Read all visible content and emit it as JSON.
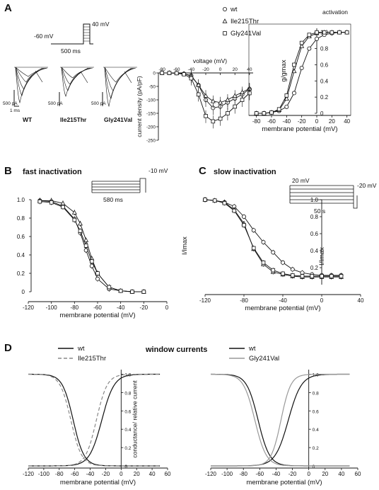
{
  "panels": {
    "A": {
      "letter": "A",
      "protocol": {
        "v_hold": "-60 mV",
        "v_step": "40 mV",
        "duration": "500 ms"
      },
      "traces": {
        "labels": [
          "WT",
          "Ile215Thr",
          "Gly241Val"
        ],
        "y_scale": "500 pA",
        "t_scale": "1 ms"
      }
    },
    "B": {
      "letter": "B",
      "title": "fast inactivation",
      "protocol": {
        "v_test": "-10 mV",
        "duration": "580 ms"
      }
    },
    "C": {
      "letter": "C",
      "title": "slow inactivation",
      "protocol": {
        "v_pre": "20 mV",
        "v_test": "-20 mV",
        "duration": "50 s"
      }
    },
    "D": {
      "letter": "D",
      "title": "window currents"
    }
  },
  "chart_data": [
    {
      "id": "iv",
      "type": "line",
      "xlabel": "voltage (mV)",
      "ylabel": "current density (pA/pF)",
      "xlim": [
        -85,
        45
      ],
      "ylim": [
        -250,
        0
      ],
      "xticks": [
        -80,
        -60,
        -40,
        -20,
        0,
        20,
        40
      ],
      "yticks": [
        0,
        -50,
        -100,
        -150,
        -200,
        -250
      ],
      "x": [
        -80,
        -70,
        -60,
        -50,
        -40,
        -30,
        -20,
        -10,
        0,
        10,
        20,
        30,
        40
      ],
      "series": [
        {
          "name": "wt",
          "marker": "circle",
          "values": [
            0,
            0,
            -1,
            -3,
            -10,
            -45,
            -100,
            -130,
            -125,
            -110,
            -95,
            -80,
            -60
          ]
        },
        {
          "name": "Ile215Thr",
          "marker": "triangle",
          "values": [
            0,
            0,
            -1,
            -3,
            -12,
            -45,
            -85,
            -105,
            -110,
            -100,
            -85,
            -72,
            -58
          ]
        },
        {
          "name": "Gly241Val",
          "marker": "square",
          "values": [
            0,
            0,
            -1,
            -5,
            -20,
            -80,
            -160,
            -180,
            -170,
            -150,
            -125,
            -100,
            -75
          ]
        }
      ]
    },
    {
      "id": "activation",
      "type": "line",
      "title": "activation",
      "xlabel": "membrane potential (mV)",
      "ylabel": "g/gmax",
      "xlim": [
        -90,
        45
      ],
      "ylim": [
        0,
        1.05
      ],
      "xticks": [
        -80,
        -60,
        -40,
        -20,
        0,
        20,
        40
      ],
      "yticks": [
        0,
        0.2,
        0.4,
        0.6,
        0.8,
        1.0
      ],
      "legend": "top-left",
      "x": [
        -80,
        -70,
        -60,
        -50,
        -40,
        -30,
        -20,
        -10,
        0,
        10,
        20,
        30,
        40
      ],
      "series": [
        {
          "name": "wt",
          "marker": "circle",
          "values": [
            0.0,
            0.0,
            0.01,
            0.03,
            0.08,
            0.25,
            0.56,
            0.8,
            0.92,
            0.97,
            0.99,
            1.0,
            1.0
          ]
        },
        {
          "name": "Ile215Thr",
          "marker": "triangle",
          "values": [
            0.0,
            0.0,
            0.01,
            0.04,
            0.18,
            0.52,
            0.83,
            0.95,
            0.99,
            1.0,
            1.0,
            1.0,
            1.0
          ]
        },
        {
          "name": "Gly241Val",
          "marker": "square",
          "values": [
            0.0,
            0.0,
            0.01,
            0.05,
            0.22,
            0.6,
            0.87,
            0.97,
            1.0,
            1.0,
            1.0,
            1.0,
            1.0
          ]
        }
      ]
    },
    {
      "id": "fast",
      "type": "line",
      "title": "fast inactivation",
      "xlabel": "membrane potential (mV)",
      "ylabel": "I/Imax",
      "xlim": [
        -120,
        0
      ],
      "ylim": [
        0,
        1.0
      ],
      "xticks": [
        -120,
        -100,
        -80,
        -60,
        -40,
        -20,
        0
      ],
      "yticks": [
        0,
        0.2,
        0.4,
        0.6,
        0.8,
        1.0
      ],
      "x": [
        -110,
        -100,
        -90,
        -80,
        -75,
        -70,
        -65,
        -60,
        -50,
        -40,
        -30,
        -20
      ],
      "series": [
        {
          "name": "wt",
          "marker": "circle",
          "values": [
            0.99,
            0.98,
            0.93,
            0.79,
            0.64,
            0.45,
            0.28,
            0.14,
            0.03,
            0.01,
            0.0,
            0.0
          ]
        },
        {
          "name": "Ile215Thr",
          "marker": "triangle",
          "values": [
            0.99,
            0.99,
            0.96,
            0.86,
            0.74,
            0.56,
            0.36,
            0.2,
            0.05,
            0.01,
            0.0,
            0.0
          ]
        },
        {
          "name": "Gly241Val",
          "marker": "square",
          "values": [
            0.98,
            0.97,
            0.92,
            0.78,
            0.66,
            0.5,
            0.33,
            0.2,
            0.05,
            0.01,
            0.0,
            0.0
          ]
        }
      ]
    },
    {
      "id": "slow",
      "type": "line",
      "title": "slow inactivation",
      "xlabel": "membrane potential (mV)",
      "ylabel": "I/Imax",
      "xlim": [
        -120,
        40
      ],
      "ylim": [
        0,
        1.0
      ],
      "xticks": [
        -120,
        -80,
        -40,
        0,
        40
      ],
      "yticks": [
        0.2,
        0.4,
        0.6,
        0.8,
        1.0
      ],
      "x": [
        -120,
        -110,
        -100,
        -90,
        -80,
        -70,
        -60,
        -50,
        -40,
        -30,
        -20,
        -10,
        0,
        10,
        20
      ],
      "series": [
        {
          "name": "wt",
          "marker": "circle",
          "values": [
            1.0,
            0.99,
            0.97,
            0.92,
            0.8,
            0.64,
            0.5,
            0.38,
            0.26,
            0.18,
            0.14,
            0.12,
            0.11,
            0.11,
            0.11
          ]
        },
        {
          "name": "Ile215Thr",
          "marker": "triangle",
          "values": [
            1.0,
            0.99,
            0.97,
            0.88,
            0.72,
            0.42,
            0.24,
            0.15,
            0.12,
            0.1,
            0.09,
            0.09,
            0.09,
            0.09,
            0.09
          ]
        },
        {
          "name": "Gly241Val",
          "marker": "square",
          "values": [
            1.0,
            0.99,
            0.96,
            0.87,
            0.7,
            0.43,
            0.26,
            0.17,
            0.13,
            0.11,
            0.1,
            0.1,
            0.1,
            0.1,
            0.1
          ]
        }
      ]
    },
    {
      "id": "window1",
      "type": "line",
      "xlabel": "membrane potential (mV)",
      "ylabel": "conductance/ relative current",
      "xlim": [
        -120,
        60
      ],
      "ylim": [
        0,
        1.05
      ],
      "xticks": [
        -120,
        -100,
        -80,
        -60,
        -40,
        -20,
        0,
        20,
        40,
        60
      ],
      "yticks": [
        0,
        0.2,
        0.4,
        0.6,
        0.8,
        1.0
      ],
      "legend": "top-left",
      "curve_params": [
        {
          "name": "wt",
          "style": "solid",
          "color": "#111111",
          "inact_v": -62,
          "inact_k": 7,
          "act_v": -25,
          "act_k": 8
        },
        {
          "name": "Ile215Thr",
          "style": "dashed",
          "color": "#888888",
          "inact_v": -65,
          "inact_k": 7,
          "act_v": -32,
          "act_k": 7
        }
      ]
    },
    {
      "id": "window2",
      "type": "line",
      "xlabel": "membrane potential (mV)",
      "xlim": [
        -120,
        60
      ],
      "ylim": [
        0,
        1.05
      ],
      "xticks": [
        -120,
        -100,
        -80,
        -60,
        -40,
        -20,
        0,
        20,
        40,
        60
      ],
      "yticks": [
        0,
        0.2,
        0.4,
        0.6,
        0.8,
        1.0
      ],
      "legend": "top-left",
      "curve_params": [
        {
          "name": "wt",
          "style": "solid",
          "color": "#111111",
          "inact_v": -62,
          "inact_k": 7,
          "act_v": -25,
          "act_k": 8
        },
        {
          "name": "Gly241Val",
          "style": "solid",
          "color": "#999999",
          "inact_v": -66,
          "inact_k": 7,
          "act_v": -34,
          "act_k": 6
        }
      ]
    }
  ]
}
